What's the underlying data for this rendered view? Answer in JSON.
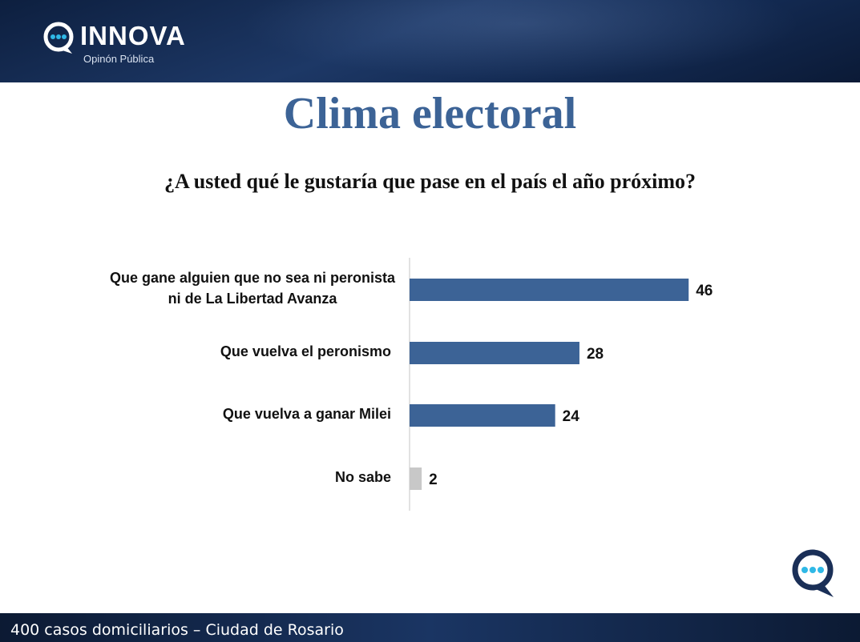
{
  "header": {
    "logo_word": "INNOVA",
    "logo_sub": "Opinón Pública"
  },
  "title": "Clima electoral",
  "question": "¿A usted qué le gustaría que pase en el país el año próximo?",
  "colors": {
    "bar_primary": "#3c6396",
    "bar_secondary": "#c8c8c8",
    "accent_icon": "#2fb8e6"
  },
  "chart_data": {
    "type": "bar",
    "orientation": "horizontal",
    "categories": [
      "Que gane alguien que no sea ni peronista ni de La Libertad Avanza",
      "Que vuelva el peronismo",
      "Que vuelva a ganar Milei",
      "No sabe"
    ],
    "values": [
      46,
      28,
      24,
      2
    ],
    "data_labels": [
      "46",
      "28",
      "24",
      "2"
    ],
    "title": "",
    "xlabel": "",
    "ylabel": "",
    "xlim": [
      0,
      100
    ],
    "grid": false,
    "legend": "none"
  },
  "footer": {
    "text": "400 casos domiciliarios – Ciudad de Rosario"
  }
}
